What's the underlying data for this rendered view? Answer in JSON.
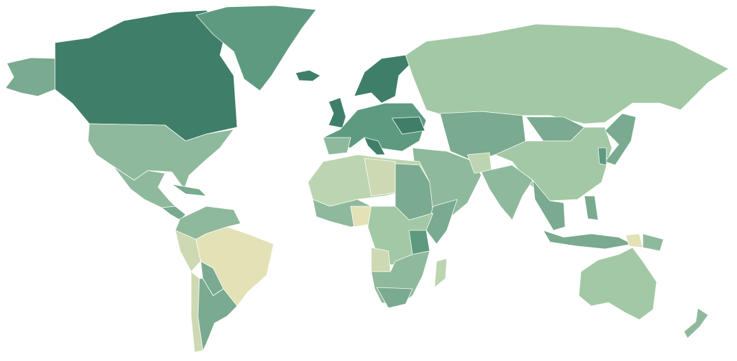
{
  "map": {
    "type": "choropleth-world",
    "palette": {
      "darkest": "#3f7f6a",
      "dark": "#5e9a80",
      "mid_dark": "#7aaa8f",
      "mid": "#8fb99c",
      "light": "#a3c8a5",
      "lighter": "#bcd5b0",
      "pale": "#cdd9b2",
      "yellow": "#e2e2b6"
    }
  }
}
